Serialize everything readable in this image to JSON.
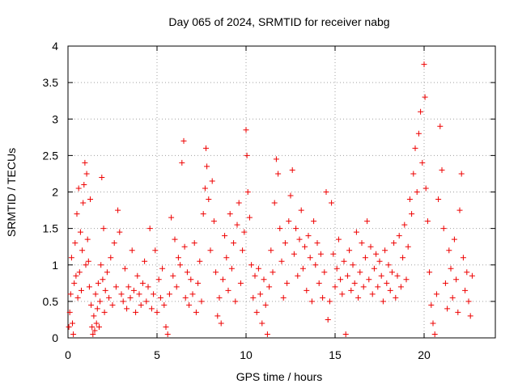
{
  "chart_data": {
    "type": "scatter",
    "title": "Day 065 of 2024, SRMTID for receiver nabg",
    "xlabel": "GPS time / hours",
    "ylabel": "SRMTID / TECUs",
    "xlim": [
      0,
      24
    ],
    "ylim": [
      0,
      4
    ],
    "x_ticks": [
      0,
      5,
      10,
      15,
      20
    ],
    "x_tick_labels": [
      "0",
      "5",
      "10",
      "15",
      "20"
    ],
    "y_ticks": [
      0,
      0.5,
      1,
      1.5,
      2,
      2.5,
      3,
      3.5,
      4
    ],
    "y_tick_labels": [
      "0",
      "0.5",
      "1",
      "1.5",
      "2",
      "2.5",
      "3",
      "3.5",
      "4"
    ],
    "grid": true,
    "marker": "plus",
    "series_color": "#ee0000",
    "series": [
      {
        "name": "SRMTID",
        "points": [
          [
            0.05,
            0.15
          ],
          [
            0.1,
            0.35
          ],
          [
            0.15,
            0.6
          ],
          [
            0.2,
            1.1
          ],
          [
            0.25,
            0.2
          ],
          [
            0.3,
            0.05
          ],
          [
            0.35,
            0.75
          ],
          [
            0.4,
            1.3
          ],
          [
            0.45,
            0.85
          ],
          [
            0.5,
            1.7
          ],
          [
            0.55,
            0.55
          ],
          [
            0.6,
            2.05
          ],
          [
            0.65,
            0.9
          ],
          [
            0.7,
            1.45
          ],
          [
            0.75,
            0.65
          ],
          [
            0.8,
            1.2
          ],
          [
            0.85,
            1.85
          ],
          [
            0.9,
            2.1
          ],
          [
            0.95,
            2.4
          ],
          [
            1.0,
            1.0
          ],
          [
            1.05,
            2.25
          ],
          [
            1.1,
            1.35
          ],
          [
            1.15,
            1.05
          ],
          [
            1.2,
            0.7
          ],
          [
            1.25,
            1.9
          ],
          [
            1.3,
            0.45
          ],
          [
            1.35,
            0.15
          ],
          [
            1.4,
            0.05
          ],
          [
            1.45,
            0.3
          ],
          [
            1.5,
            0.1
          ],
          [
            1.55,
            0.6
          ],
          [
            1.6,
            0.2
          ],
          [
            1.65,
            0.4
          ],
          [
            1.7,
            0.75
          ],
          [
            1.75,
            0.15
          ],
          [
            1.8,
            0.5
          ],
          [
            1.85,
            1.0
          ],
          [
            1.9,
            2.2
          ],
          [
            1.95,
            0.8
          ],
          [
            2.0,
            1.5
          ],
          [
            2.05,
            0.35
          ],
          [
            2.1,
            0.65
          ],
          [
            2.2,
            0.9
          ],
          [
            2.3,
            0.55
          ],
          [
            2.4,
            1.1
          ],
          [
            2.5,
            0.45
          ],
          [
            2.6,
            1.3
          ],
          [
            2.7,
            0.7
          ],
          [
            2.8,
            1.75
          ],
          [
            2.9,
            1.45
          ],
          [
            3.0,
            0.6
          ],
          [
            3.1,
            0.5
          ],
          [
            3.2,
            0.95
          ],
          [
            3.3,
            0.4
          ],
          [
            3.4,
            0.7
          ],
          [
            3.5,
            0.55
          ],
          [
            3.6,
            1.2
          ],
          [
            3.7,
            0.65
          ],
          [
            3.8,
            0.35
          ],
          [
            3.9,
            0.85
          ],
          [
            4.0,
            0.6
          ],
          [
            4.1,
            0.45
          ],
          [
            4.2,
            0.75
          ],
          [
            4.3,
            1.05
          ],
          [
            4.4,
            0.5
          ],
          [
            4.5,
            0.7
          ],
          [
            4.6,
            1.5
          ],
          [
            4.7,
            0.4
          ],
          [
            4.8,
            0.6
          ],
          [
            4.9,
            1.2
          ],
          [
            5.0,
            0.35
          ],
          [
            5.1,
            0.8
          ],
          [
            5.2,
            0.55
          ],
          [
            5.3,
            0.95
          ],
          [
            5.4,
            0.45
          ],
          [
            5.5,
            0.15
          ],
          [
            5.6,
            0.05
          ],
          [
            5.7,
            0.6
          ],
          [
            5.8,
            1.65
          ],
          [
            5.9,
            0.85
          ],
          [
            6.0,
            1.35
          ],
          [
            6.1,
            0.7
          ],
          [
            6.2,
            1.1
          ],
          [
            6.3,
            1.0
          ],
          [
            6.4,
            2.4
          ],
          [
            6.5,
            2.7
          ],
          [
            6.55,
            1.25
          ],
          [
            6.6,
            0.55
          ],
          [
            6.7,
            0.9
          ],
          [
            6.8,
            0.45
          ],
          [
            6.9,
            0.8
          ],
          [
            7.0,
            0.6
          ],
          [
            7.1,
            1.3
          ],
          [
            7.2,
            0.35
          ],
          [
            7.3,
            0.75
          ],
          [
            7.4,
            1.05
          ],
          [
            7.5,
            0.5
          ],
          [
            7.6,
            1.7
          ],
          [
            7.7,
            2.05
          ],
          [
            7.75,
            2.6
          ],
          [
            7.8,
            2.35
          ],
          [
            7.9,
            1.9
          ],
          [
            8.0,
            1.2
          ],
          [
            8.1,
            2.15
          ],
          [
            8.2,
            1.6
          ],
          [
            8.3,
            0.9
          ],
          [
            8.4,
            0.3
          ],
          [
            8.5,
            0.55
          ],
          [
            8.6,
            0.2
          ],
          [
            8.7,
            0.8
          ],
          [
            8.8,
            1.4
          ],
          [
            8.9,
            1.1
          ],
          [
            9.0,
            0.65
          ],
          [
            9.1,
            1.7
          ],
          [
            9.2,
            0.95
          ],
          [
            9.3,
            1.3
          ],
          [
            9.4,
            0.5
          ],
          [
            9.5,
            1.55
          ],
          [
            9.6,
            1.85
          ],
          [
            9.7,
            0.75
          ],
          [
            9.8,
            1.2
          ],
          [
            9.9,
            1.45
          ],
          [
            10.0,
            2.85
          ],
          [
            10.05,
            2.5
          ],
          [
            10.1,
            2.0
          ],
          [
            10.2,
            1.65
          ],
          [
            10.3,
            1.0
          ],
          [
            10.4,
            0.55
          ],
          [
            10.5,
            0.85
          ],
          [
            10.6,
            0.35
          ],
          [
            10.7,
            0.95
          ],
          [
            10.8,
            0.6
          ],
          [
            10.9,
            0.2
          ],
          [
            11.0,
            0.8
          ],
          [
            11.1,
            0.45
          ],
          [
            11.2,
            0.05
          ],
          [
            11.3,
            0.7
          ],
          [
            11.4,
            1.2
          ],
          [
            11.5,
            0.9
          ],
          [
            11.6,
            1.85
          ],
          [
            11.7,
            2.45
          ],
          [
            11.8,
            2.25
          ],
          [
            11.9,
            1.5
          ],
          [
            12.0,
            1.05
          ],
          [
            12.1,
            0.55
          ],
          [
            12.2,
            1.3
          ],
          [
            12.3,
            0.75
          ],
          [
            12.4,
            1.6
          ],
          [
            12.5,
            1.95
          ],
          [
            12.6,
            2.3
          ],
          [
            12.7,
            1.15
          ],
          [
            12.8,
            1.5
          ],
          [
            12.9,
            0.85
          ],
          [
            13.0,
            1.35
          ],
          [
            13.1,
            1.75
          ],
          [
            13.2,
            0.95
          ],
          [
            13.3,
            1.25
          ],
          [
            13.4,
            0.65
          ],
          [
            13.5,
            1.4
          ],
          [
            13.6,
            1.1
          ],
          [
            13.7,
            0.5
          ],
          [
            13.8,
            1.6
          ],
          [
            13.9,
            1.0
          ],
          [
            14.0,
            1.3
          ],
          [
            14.1,
            0.75
          ],
          [
            14.2,
            1.15
          ],
          [
            14.3,
            0.55
          ],
          [
            14.4,
            0.9
          ],
          [
            14.5,
            2.0
          ],
          [
            14.6,
            0.25
          ],
          [
            14.7,
            0.5
          ],
          [
            14.8,
            1.85
          ],
          [
            14.9,
            1.15
          ],
          [
            15.0,
            0.7
          ],
          [
            15.1,
            0.95
          ],
          [
            15.2,
            1.35
          ],
          [
            15.3,
            0.8
          ],
          [
            15.4,
            0.6
          ],
          [
            15.5,
            1.05
          ],
          [
            15.6,
            0.05
          ],
          [
            15.7,
            0.85
          ],
          [
            15.8,
            1.2
          ],
          [
            15.9,
            0.65
          ],
          [
            16.0,
            1.0
          ],
          [
            16.1,
            0.75
          ],
          [
            16.2,
            1.45
          ],
          [
            16.3,
            0.55
          ],
          [
            16.4,
            0.9
          ],
          [
            16.5,
            1.3
          ],
          [
            16.6,
            0.7
          ],
          [
            16.7,
            1.1
          ],
          [
            16.8,
            1.6
          ],
          [
            16.9,
            0.8
          ],
          [
            17.0,
            1.25
          ],
          [
            17.1,
            0.6
          ],
          [
            17.2,
            0.95
          ],
          [
            17.3,
            1.15
          ],
          [
            17.4,
            0.7
          ],
          [
            17.5,
            1.05
          ],
          [
            17.6,
            0.85
          ],
          [
            17.7,
            0.5
          ],
          [
            17.8,
            1.2
          ],
          [
            17.9,
            0.75
          ],
          [
            18.0,
            1.0
          ],
          [
            18.1,
            0.65
          ],
          [
            18.2,
            0.9
          ],
          [
            18.3,
            1.3
          ],
          [
            18.4,
            0.55
          ],
          [
            18.5,
            0.85
          ],
          [
            18.6,
            1.4
          ],
          [
            18.7,
            0.7
          ],
          [
            18.8,
            1.1
          ],
          [
            18.9,
            1.55
          ],
          [
            19.0,
            0.8
          ],
          [
            19.1,
            1.25
          ],
          [
            19.2,
            1.9
          ],
          [
            19.3,
            1.7
          ],
          [
            19.4,
            2.25
          ],
          [
            19.5,
            2.6
          ],
          [
            19.6,
            2.0
          ],
          [
            19.7,
            2.8
          ],
          [
            19.8,
            3.1
          ],
          [
            19.9,
            2.4
          ],
          [
            20.0,
            3.75
          ],
          [
            20.05,
            3.3
          ],
          [
            20.1,
            2.05
          ],
          [
            20.2,
            1.6
          ],
          [
            20.3,
            0.9
          ],
          [
            20.4,
            0.45
          ],
          [
            20.5,
            0.2
          ],
          [
            20.6,
            0.05
          ],
          [
            20.7,
            0.6
          ],
          [
            20.8,
            1.9
          ],
          [
            20.9,
            2.9
          ],
          [
            21.0,
            2.3
          ],
          [
            21.1,
            1.5
          ],
          [
            21.2,
            0.75
          ],
          [
            21.3,
            0.4
          ],
          [
            21.4,
            1.2
          ],
          [
            21.5,
            0.95
          ],
          [
            21.6,
            0.55
          ],
          [
            21.7,
            1.35
          ],
          [
            21.8,
            0.8
          ],
          [
            21.9,
            0.35
          ],
          [
            22.0,
            1.75
          ],
          [
            22.1,
            2.25
          ],
          [
            22.2,
            1.1
          ],
          [
            22.3,
            0.65
          ],
          [
            22.4,
            0.9
          ],
          [
            22.5,
            0.5
          ],
          [
            22.6,
            0.3
          ],
          [
            22.7,
            0.85
          ]
        ]
      }
    ]
  }
}
